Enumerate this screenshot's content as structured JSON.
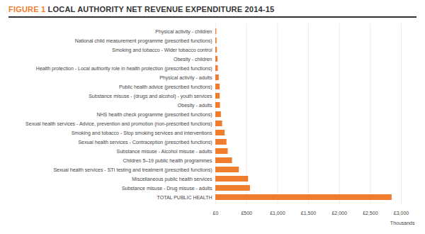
{
  "chart_data": {
    "type": "bar",
    "orientation": "horizontal",
    "title": "FIGURE 1 LOCAL AUTHORITY NET REVENUE EXPENDITURE 2014-15",
    "categories": [
      "Physical activity - children",
      "National child measurement programme (prescribed functions)",
      "Smoking and tobacco - Wider tobacco control",
      "Obesity - children",
      "Health protection - Local authority role in health protection (prescribed functions)",
      "Physical activity - adults",
      "Public health advice (prescribed functions)",
      "Substance misuse - (drugs and alcohol) - youth services",
      "Obesity - adults",
      "NHS health check programme (prescribed functions)",
      "Sexual health services - Advice, prevention and promotion (non-prescribed functions)",
      "Smoking and tobacco - Stop smoking services and interventions",
      "Sexual health services - Contraception (prescribed functions)",
      "Substance misuse - Alcohol misuse - adults",
      "Children 5–19 public health programmes",
      "Sexual health services - STI testing and treatment (prescribed functions)",
      "Miscellaneous public health services",
      "Substance misuse - Drug misuse - adults",
      "TOTAL PUBLIC HEALTH"
    ],
    "values": [
      15,
      20,
      25,
      35,
      40,
      55,
      70,
      70,
      75,
      90,
      110,
      150,
      180,
      200,
      270,
      380,
      530,
      560,
      2850
    ],
    "color": "#f07d2e",
    "xlabel": "Thousands",
    "xlim": [
      0,
      3000
    ],
    "xticks": [
      {
        "value": 0,
        "label": "£0"
      },
      {
        "value": 500,
        "label": "£500"
      },
      {
        "value": 1000,
        "label": "£1,000"
      },
      {
        "value": 1500,
        "label": "£1,500"
      },
      {
        "value": 2000,
        "label": "£2,000"
      },
      {
        "value": 2500,
        "label": "£2,500"
      },
      {
        "value": 3000,
        "label": "£3,000"
      }
    ],
    "grid": true
  }
}
